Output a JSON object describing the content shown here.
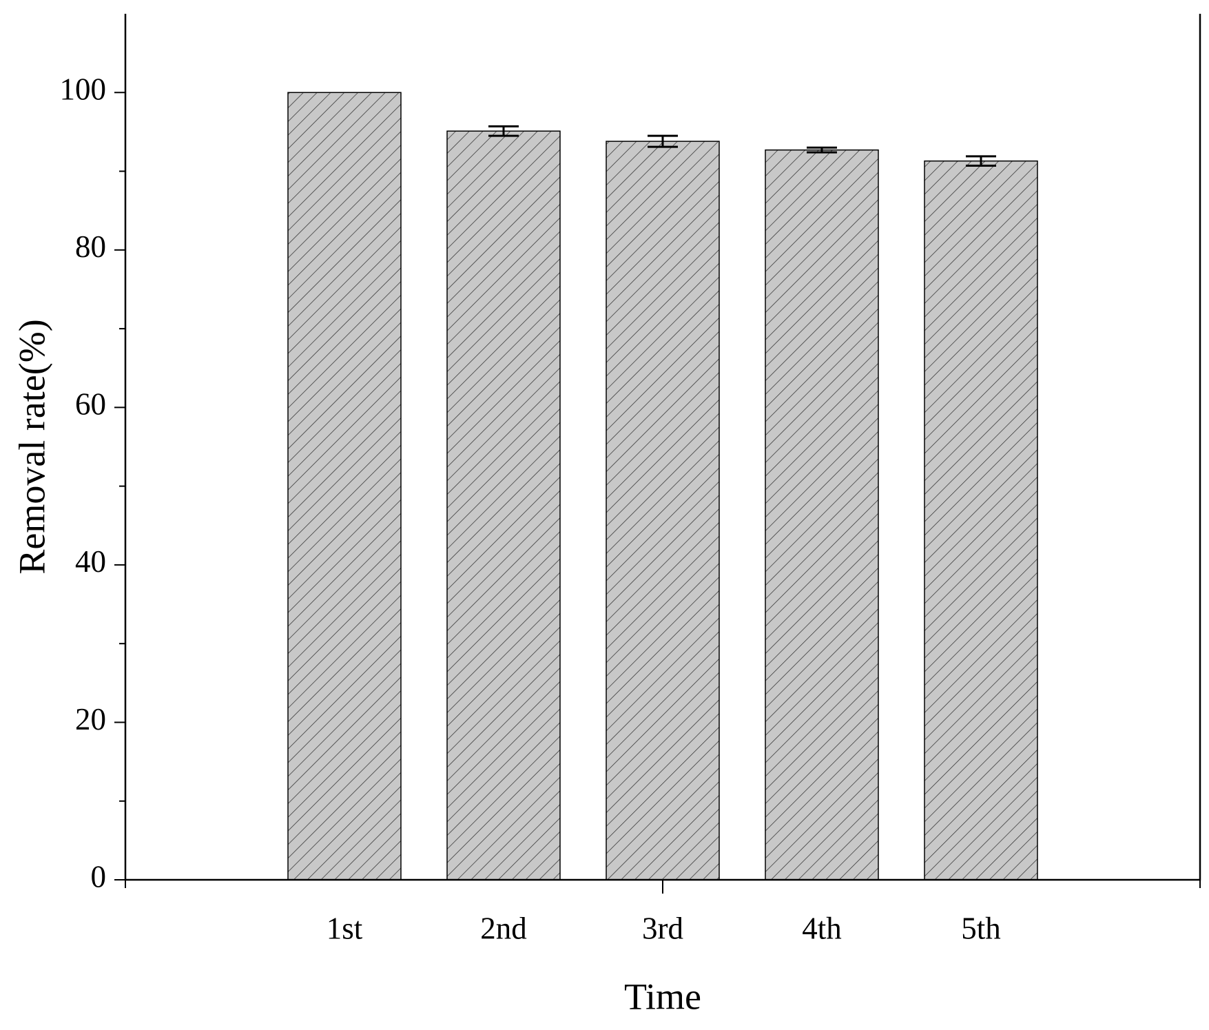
{
  "chart_data": {
    "type": "bar",
    "x_label": "Time",
    "y_label": "Removal rate(%)",
    "categories": [
      "1st",
      "2nd",
      "3rd",
      "4th",
      "5th"
    ],
    "values": [
      100,
      95.1,
      93.8,
      92.7,
      91.3
    ],
    "errors": [
      null,
      0.6,
      0.7,
      0.3,
      0.6
    ],
    "color": "#c8c8c8",
    "hatch": true,
    "ylim": [
      0,
      110
    ],
    "yticks": [
      0,
      20,
      40,
      60,
      80,
      100
    ],
    "yminor": [
      10,
      30,
      50,
      70,
      90
    ]
  }
}
